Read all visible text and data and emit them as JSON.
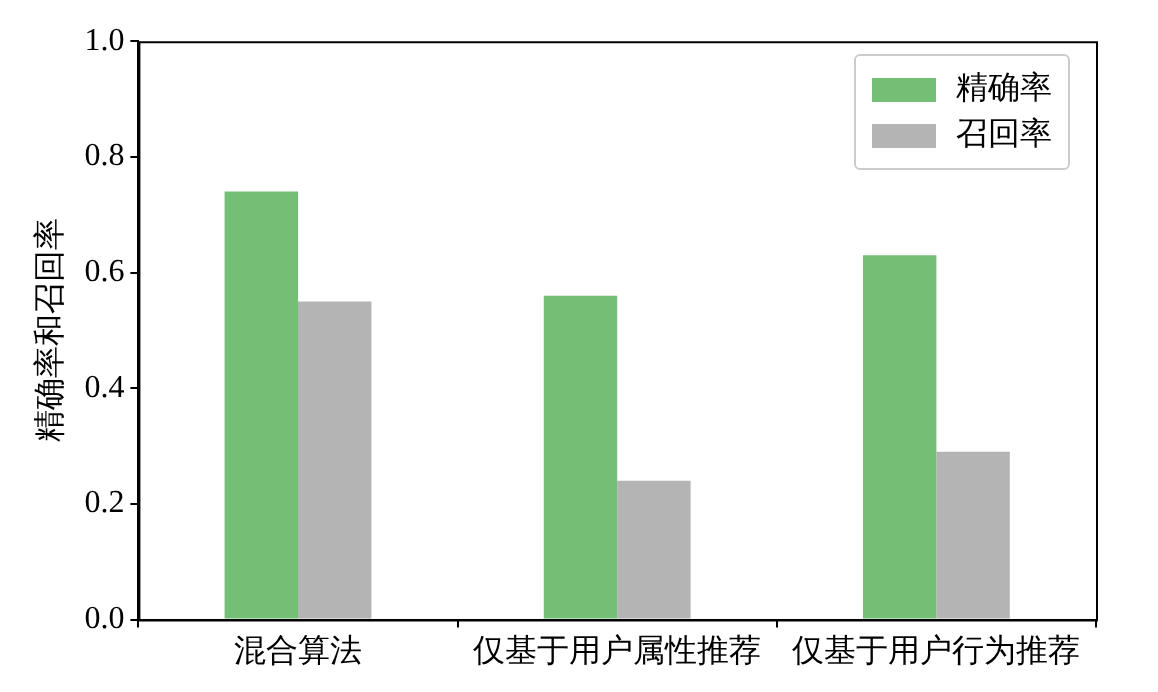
{
  "chart_data": {
    "type": "bar",
    "ylabel": "精确率和召回率",
    "categories": [
      "混合算法",
      "仅基于用户属性推荐",
      "仅基于用户行为推荐"
    ],
    "series": [
      {
        "name": "精确率",
        "color": "#74be75",
        "values": [
          0.74,
          0.56,
          0.63
        ]
      },
      {
        "name": "召回率",
        "color": "#b4b4b4",
        "values": [
          0.55,
          0.24,
          0.29
        ]
      }
    ],
    "ylim": [
      0,
      1
    ],
    "yticks": [
      {
        "value": 0,
        "label": "0.0"
      },
      {
        "value": 0.2,
        "label": "0.2"
      },
      {
        "value": 0.4,
        "label": "0.4"
      },
      {
        "value": 0.6,
        "label": "0.6"
      },
      {
        "value": 0.8,
        "label": "0.8"
      },
      {
        "value": 1,
        "label": "1.0"
      }
    ],
    "legend": "top right"
  }
}
